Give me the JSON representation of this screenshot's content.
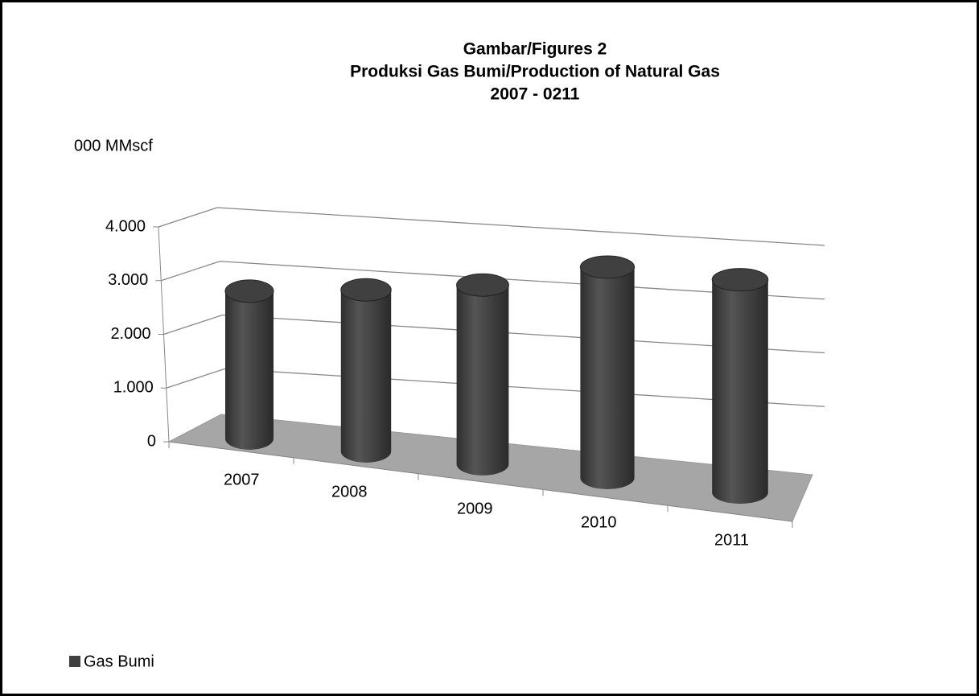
{
  "chart_data": {
    "type": "bar3d",
    "title": [
      "Gambar/Figures 2",
      "Produksi Gas Bumi/Production of Natural Gas",
      "2007 - 0211"
    ],
    "y_axis_label": "000 MMscf",
    "categories": [
      "2007",
      "2008",
      "2009",
      "2010",
      "2011"
    ],
    "series": [
      {
        "name": "Gas Bumi",
        "color": "#404040",
        "values": [
          2800,
          2900,
          3050,
          3400,
          3250
        ]
      }
    ],
    "ylim": [
      0,
      4000
    ],
    "yticks": [
      0,
      {
        "value": 1000,
        "label": "1.000"
      },
      {
        "value": 2000,
        "label": "2.000"
      },
      {
        "value": 3000,
        "label": "3.000"
      },
      {
        "value": 4000,
        "label": "4.000"
      }
    ],
    "grid": true,
    "legend": "bottom-left"
  }
}
